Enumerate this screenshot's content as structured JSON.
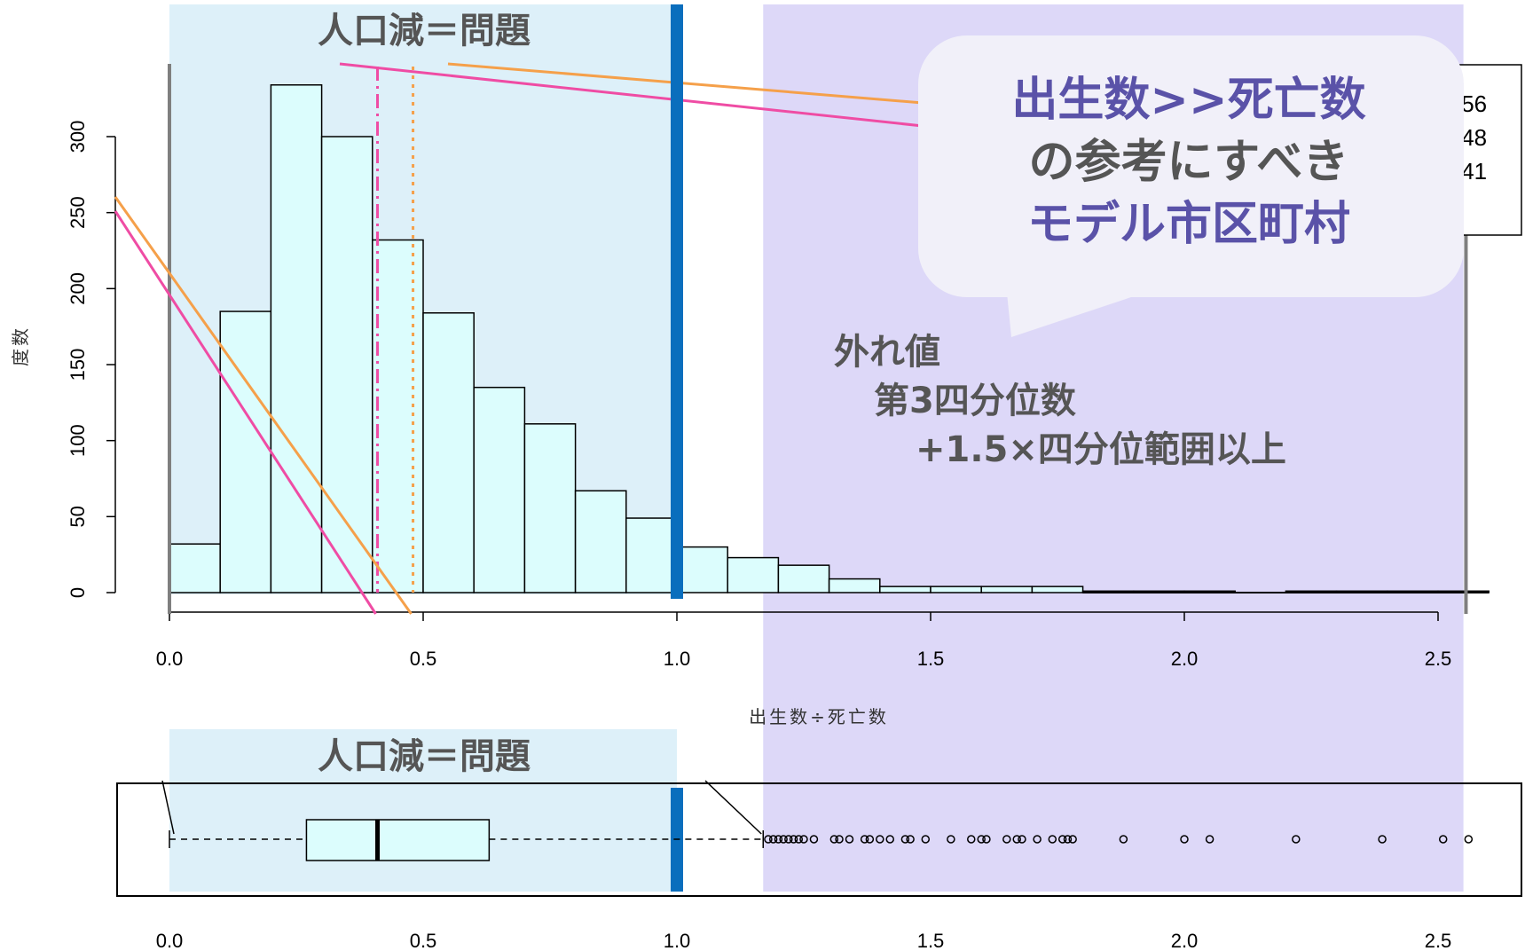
{
  "colors": {
    "bar_fill": "#dcfdfd",
    "left_region": "#ddf0f9",
    "right_region": "#ddd8f8",
    "blue_line": "#0a6ebd",
    "orange": "#f5a04a",
    "pink": "#ef4ca4",
    "bubble_fill": "#f1f0f9",
    "bubble_text_purple": "#5a52a8",
    "bubble_text_gray": "#555555",
    "annot_gray": "#555555"
  },
  "annotations": {
    "top_region_label": "人口減＝問題",
    "bottom_region_label": "人口減＝問題",
    "bubble_line1": "出生数>>死亡数",
    "bubble_line2": "の参考にすべき",
    "bubble_line3": "モデル市区町村",
    "outlier_line1": "外れ値",
    "outlier_line2": "第3四分位数",
    "outlier_line3": "+1.5×四分位範囲以上"
  },
  "legend_partial": {
    "values": [
      ".56",
      ".48",
      ".41",
      ")"
    ]
  },
  "chart_data": [
    {
      "type": "bar",
      "subtype": "histogram",
      "xlabel": "出生数÷死亡数",
      "ylabel": "度数",
      "bin_edges": [
        0.0,
        0.1,
        0.2,
        0.3,
        0.4,
        0.5,
        0.6,
        0.7,
        0.8,
        0.9,
        1.0,
        1.1,
        1.2,
        1.3,
        1.4,
        1.5,
        1.6,
        1.7,
        1.8,
        1.9,
        2.0,
        2.1,
        2.2,
        2.3,
        2.4,
        2.5,
        2.6
      ],
      "values": [
        32,
        185,
        334,
        300,
        232,
        184,
        135,
        111,
        67,
        49,
        30,
        23,
        18,
        9,
        4,
        4,
        4,
        4,
        1,
        1,
        1,
        0,
        1,
        1,
        1,
        1
      ],
      "xlim": [
        0.0,
        2.5
      ],
      "ylim": [
        0,
        300
      ],
      "x_ticks": [
        "0.0",
        "0.5",
        "1.0",
        "1.5",
        "2.0",
        "2.5"
      ],
      "y_ticks": [
        "0",
        "50",
        "100",
        "150",
        "200",
        "250",
        "300"
      ],
      "reference_lines": {
        "median": 0.41,
        "mean": 0.48,
        "threshold": 1.0
      },
      "shaded_regions": [
        [
          0.0,
          1.0
        ],
        [
          1.17,
          2.55
        ]
      ]
    },
    {
      "type": "boxplot",
      "orientation": "horizontal",
      "whisker_low": 0.0,
      "q1": 0.27,
      "median": 0.41,
      "q3": 0.63,
      "whisker_high": 1.17,
      "outliers": [
        1.18,
        1.19,
        1.2,
        1.21,
        1.22,
        1.23,
        1.24,
        1.25,
        1.27,
        1.31,
        1.32,
        1.34,
        1.37,
        1.38,
        1.4,
        1.42,
        1.45,
        1.46,
        1.49,
        1.54,
        1.58,
        1.6,
        1.61,
        1.65,
        1.67,
        1.68,
        1.71,
        1.74,
        1.76,
        1.77,
        1.78,
        1.88,
        2.0,
        2.05,
        2.22,
        2.39,
        2.51,
        2.56
      ],
      "x_ticks": [
        "0.0",
        "0.5",
        "1.0",
        "1.5",
        "2.0",
        "2.5"
      ],
      "threshold": 1.0,
      "shaded_regions": [
        [
          0.0,
          1.0
        ],
        [
          1.17,
          2.55
        ]
      ]
    }
  ]
}
